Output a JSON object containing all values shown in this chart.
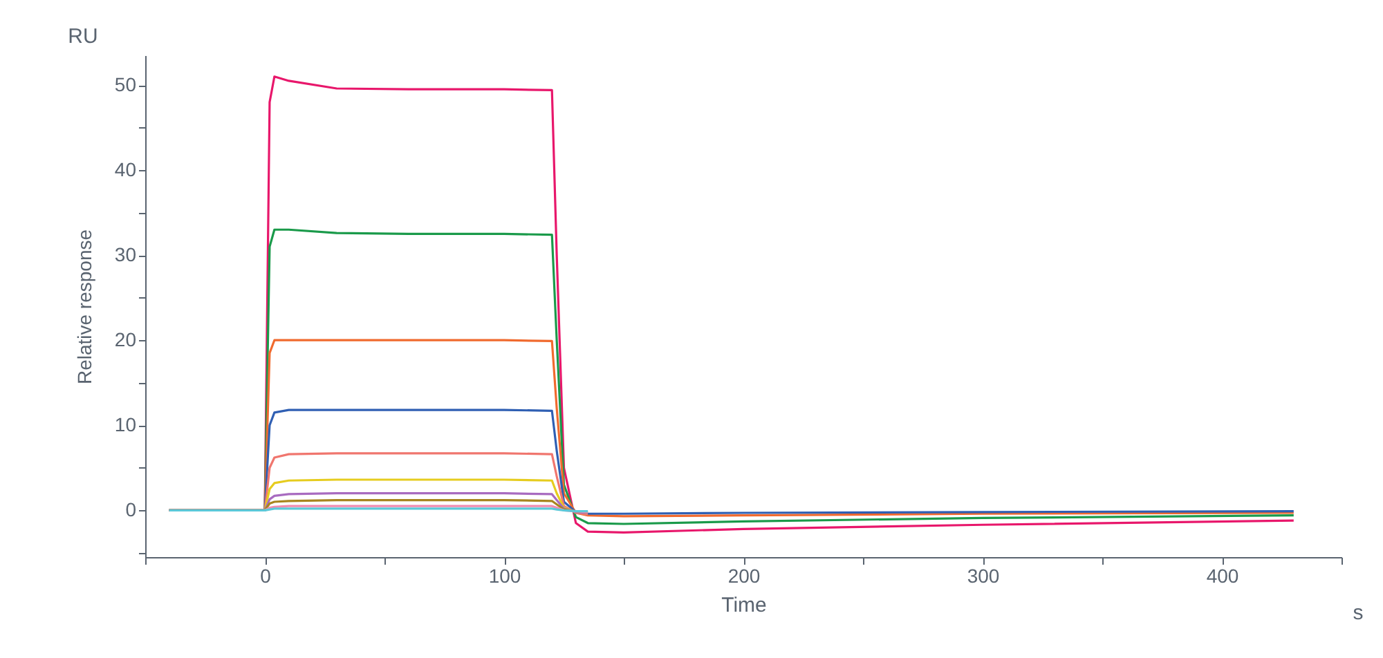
{
  "chart_data": {
    "type": "line",
    "xlabel": "Time",
    "ylabel": "Relative response",
    "annotations": [
      "RU",
      "s"
    ],
    "x": [
      -40,
      0,
      2,
      4,
      10,
      30,
      60,
      100,
      120,
      122,
      125,
      130,
      135,
      150,
      200,
      300,
      430
    ],
    "series": [
      {
        "color": "#e8176b",
        "values": [
          0,
          0,
          48,
          51,
          50.5,
          49.6,
          49.5,
          49.5,
          49.4,
          30,
          5,
          -1.5,
          -2.5,
          -2.6,
          -2.2,
          -1.7,
          -1.2
        ]
      },
      {
        "color": "#1a9a4a",
        "values": [
          0,
          0,
          31,
          33,
          33,
          32.6,
          32.5,
          32.5,
          32.4,
          20,
          3,
          -0.8,
          -1.5,
          -1.6,
          -1.3,
          -0.9,
          -0.6
        ]
      },
      {
        "color": "#f06a2e",
        "values": [
          0,
          0,
          18.5,
          20,
          20,
          20,
          20,
          20,
          19.9,
          12,
          2,
          -0.3,
          -0.6,
          -0.7,
          -0.6,
          -0.4,
          -0.3
        ]
      },
      {
        "color": "#2f5fb3",
        "values": [
          0,
          0,
          10,
          11.5,
          11.8,
          11.8,
          11.8,
          11.8,
          11.7,
          7,
          1,
          -0.2,
          -0.4,
          -0.4,
          -0.3,
          -0.2,
          -0.1
        ]
      },
      {
        "color": "#f0766e",
        "values": [
          0,
          0,
          5,
          6.2,
          6.6,
          6.7,
          6.7,
          6.7,
          6.6,
          4,
          0.5,
          -0.3,
          -0.5,
          null,
          null,
          null,
          null
        ]
      },
      {
        "color": "#e6cc1e",
        "values": [
          0,
          0,
          2.5,
          3.2,
          3.5,
          3.6,
          3.6,
          3.6,
          3.5,
          2,
          0.3,
          -0.2,
          -0.3,
          null,
          null,
          null,
          null
        ]
      },
      {
        "color": "#a86bc0",
        "values": [
          0,
          0,
          1.3,
          1.7,
          1.9,
          2,
          2,
          2,
          1.9,
          1.2,
          0.2,
          -0.2,
          -0.3,
          null,
          null,
          null,
          null
        ]
      },
      {
        "color": "#a8851e",
        "values": [
          0,
          0,
          0.8,
          1,
          1.1,
          1.2,
          1.2,
          1.2,
          1.1,
          0.7,
          0.1,
          -0.1,
          -0.2,
          null,
          null,
          null,
          null
        ]
      },
      {
        "color": "#f08cb0",
        "values": [
          0,
          0,
          0.3,
          0.4,
          0.5,
          0.5,
          0.5,
          0.5,
          0.5,
          0.3,
          0,
          -0.1,
          -0.2,
          null,
          null,
          null,
          null
        ]
      },
      {
        "color": "#5bc8d8",
        "values": [
          0,
          0,
          0.1,
          0.2,
          0.2,
          0.2,
          0.2,
          0.2,
          0.2,
          0.1,
          0,
          -0.1,
          -0.1,
          null,
          null,
          null,
          null
        ]
      }
    ],
    "xlim": [
      -50,
      450
    ],
    "xticks": [
      {
        "value": -50,
        "label": null
      },
      0,
      {
        "value": 50,
        "label": null
      },
      100,
      {
        "value": 150,
        "label": null
      },
      200,
      {
        "value": 250,
        "label": null
      },
      300,
      {
        "value": 350,
        "label": null
      },
      400,
      {
        "value": 450,
        "label": null
      }
    ],
    "ylim": [
      -5.5,
      53.5
    ],
    "yticks": [
      {
        "value": -5,
        "label": null
      },
      0,
      {
        "value": 5,
        "label": null
      },
      10,
      {
        "value": 15,
        "label": null
      },
      20,
      {
        "value": 25,
        "label": null
      },
      30,
      {
        "value": 35,
        "label": null
      },
      40,
      {
        "value": 45,
        "label": null
      },
      50
    ],
    "grid": false,
    "legend": false
  }
}
